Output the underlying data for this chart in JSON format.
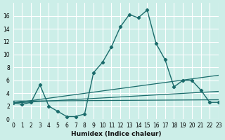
{
  "xlabel": "Humidex (Indice chaleur)",
  "ylabel": "",
  "bg_color": "#cceee8",
  "grid_color": "#ffffff",
  "line_color": "#1a6b6b",
  "xlim": [
    0,
    23
  ],
  "ylim": [
    0,
    18
  ],
  "xticks": [
    0,
    1,
    2,
    3,
    4,
    5,
    6,
    7,
    8,
    9,
    10,
    11,
    12,
    13,
    14,
    15,
    16,
    17,
    18,
    19,
    20,
    21,
    22,
    23
  ],
  "yticks": [
    0,
    2,
    4,
    6,
    8,
    10,
    12,
    14,
    16
  ],
  "main_x": [
    0,
    1,
    2,
    3,
    4,
    5,
    6,
    7,
    8,
    9,
    10,
    11,
    12,
    13,
    14,
    15,
    16,
    17,
    18,
    19,
    20,
    21,
    22,
    23
  ],
  "main_y": [
    2.5,
    2.3,
    2.6,
    5.3,
    2.0,
    1.2,
    0.4,
    0.4,
    0.8,
    7.2,
    8.8,
    11.2,
    14.3,
    16.2,
    15.7,
    16.9,
    11.7,
    9.2,
    5.0,
    6.0,
    6.0,
    4.5,
    2.6,
    2.6
  ],
  "trend1_x": [
    0,
    23
  ],
  "trend1_y": [
    2.5,
    6.8
  ],
  "trend2_x": [
    0,
    23
  ],
  "trend2_y": [
    2.5,
    4.3
  ],
  "trend3_x": [
    0,
    23
  ],
  "trend3_y": [
    2.8,
    3.0
  ]
}
